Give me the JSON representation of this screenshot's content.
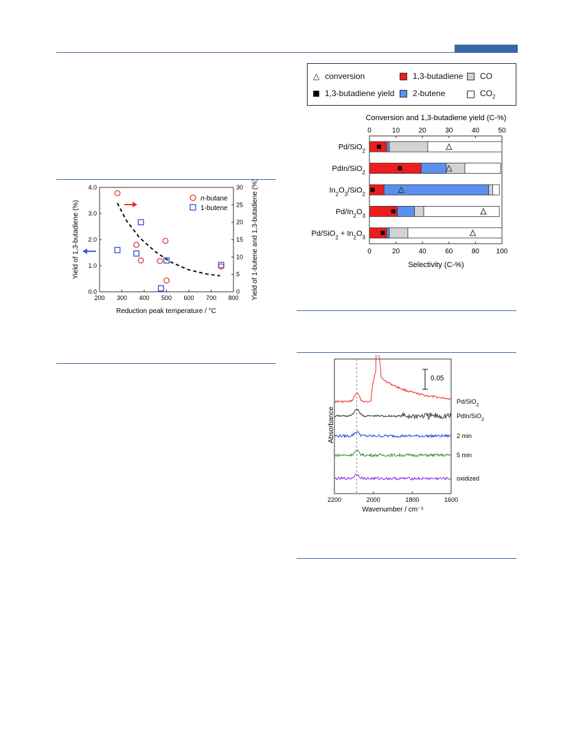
{
  "colors": {
    "accent": "#3f6ea8",
    "butadiene": "#ee1c1c",
    "butene2": "#5b8ff0",
    "co": "#d3d3d3",
    "co2": "#ffffff"
  },
  "chart_data": [
    {
      "type": "scatter",
      "xlabel": "Reduction peak temperature / °C",
      "ylabel_left": "Yield of 1,3-butadiene (%)",
      "ylabel_right": "Yield of 1-butene and 1,3-butadiene (%)",
      "xlim": [
        200,
        800
      ],
      "ylim_left": [
        0,
        4.0
      ],
      "ylim_right": [
        0,
        30
      ],
      "x_ticks": [
        "200",
        "300",
        "400",
        "500",
        "600",
        "700",
        "800"
      ],
      "y_left_ticks": [
        "0.0",
        "1.0",
        "2.0",
        "3.0",
        "4.0"
      ],
      "y_right_ticks": [
        "0",
        "5",
        "10",
        "15",
        "20",
        "25",
        "30"
      ],
      "series": [
        {
          "name": "n-butane",
          "axis": "left",
          "marker": "circle",
          "color": "#e03a3a",
          "x": [
            280,
            365,
            385,
            470,
            495,
            500,
            745
          ],
          "y": [
            3.78,
            1.8,
            1.2,
            1.18,
            1.95,
            0.43,
            0.97
          ]
        },
        {
          "name": "1-butene",
          "axis": "right",
          "marker": "square",
          "color": "#3b4fd6",
          "x": [
            280,
            365,
            385,
            475,
            500,
            745
          ],
          "y": [
            12,
            11,
            20,
            1,
            9,
            7.7
          ]
        }
      ],
      "trend": {
        "x": [
          280,
          320,
          380,
          450,
          520,
          600,
          680,
          740
        ],
        "y": [
          25.5,
          20.5,
          15.5,
          11.5,
          8.5,
          6.3,
          5.1,
          4.6
        ]
      }
    },
    {
      "type": "bar",
      "top_axis_label": "Conversion and 1,3-butadiene yield (C-%)",
      "top_ticks": [
        "0",
        "10",
        "20",
        "30",
        "40",
        "50"
      ],
      "xlabel": "Selectivity (C-%)",
      "x_ticks": [
        "0",
        "20",
        "40",
        "60",
        "80",
        "100"
      ],
      "categories": [
        "Pd/SiO2",
        "PdIn/SiO2",
        "In2O3/SiO2",
        "Pd/In2O3",
        "Pd/SiO2 + In2O3"
      ],
      "series": [
        {
          "name": "1,3-butadiene",
          "values": [
            13,
            39,
            11,
            21,
            13
          ]
        },
        {
          "name": "2-butene",
          "values": [
            2,
            19,
            79,
            13,
            2
          ]
        },
        {
          "name": "CO",
          "values": [
            29,
            14,
            3,
            7,
            14
          ]
        },
        {
          "name": "CO2",
          "values": [
            56,
            27,
            5,
            57,
            71
          ]
        }
      ],
      "conversion": [
        30,
        30,
        12,
        43,
        39
      ],
      "butadiene_yield": [
        3.6,
        11.5,
        1.2,
        9,
        5
      ]
    },
    {
      "type": "line",
      "xlabel": "Wavenumber / cm⁻¹",
      "ylabel": "Absorbance",
      "x_ticks": [
        "2200",
        "2000",
        "1800",
        "1600"
      ],
      "xlim": [
        2200,
        1600
      ],
      "scale_bar": "0.05",
      "dashed_line_x": 2085,
      "series": [
        {
          "name": "Pd/SiO2",
          "color": "#ee2b2b"
        },
        {
          "name": "PdIn/SiO2",
          "color": "#333333"
        },
        {
          "name": "2 min",
          "color": "#2a3ee0"
        },
        {
          "name": "5 min",
          "color": "#2a8a2a"
        },
        {
          "name": "oxidized",
          "color": "#7b2ee0"
        }
      ]
    }
  ],
  "labels": {
    "nbutane_prefix": "n",
    "nbutane_rest": "-butane",
    "butene1": "1-butene",
    "leg_conversion": "conversion",
    "leg_yield": "1,3-butadiene yield",
    "leg_butadiene": "1,3-butadiene",
    "leg_2butene": "2-butene",
    "leg_co": "CO",
    "leg_co2": "CO"
  }
}
